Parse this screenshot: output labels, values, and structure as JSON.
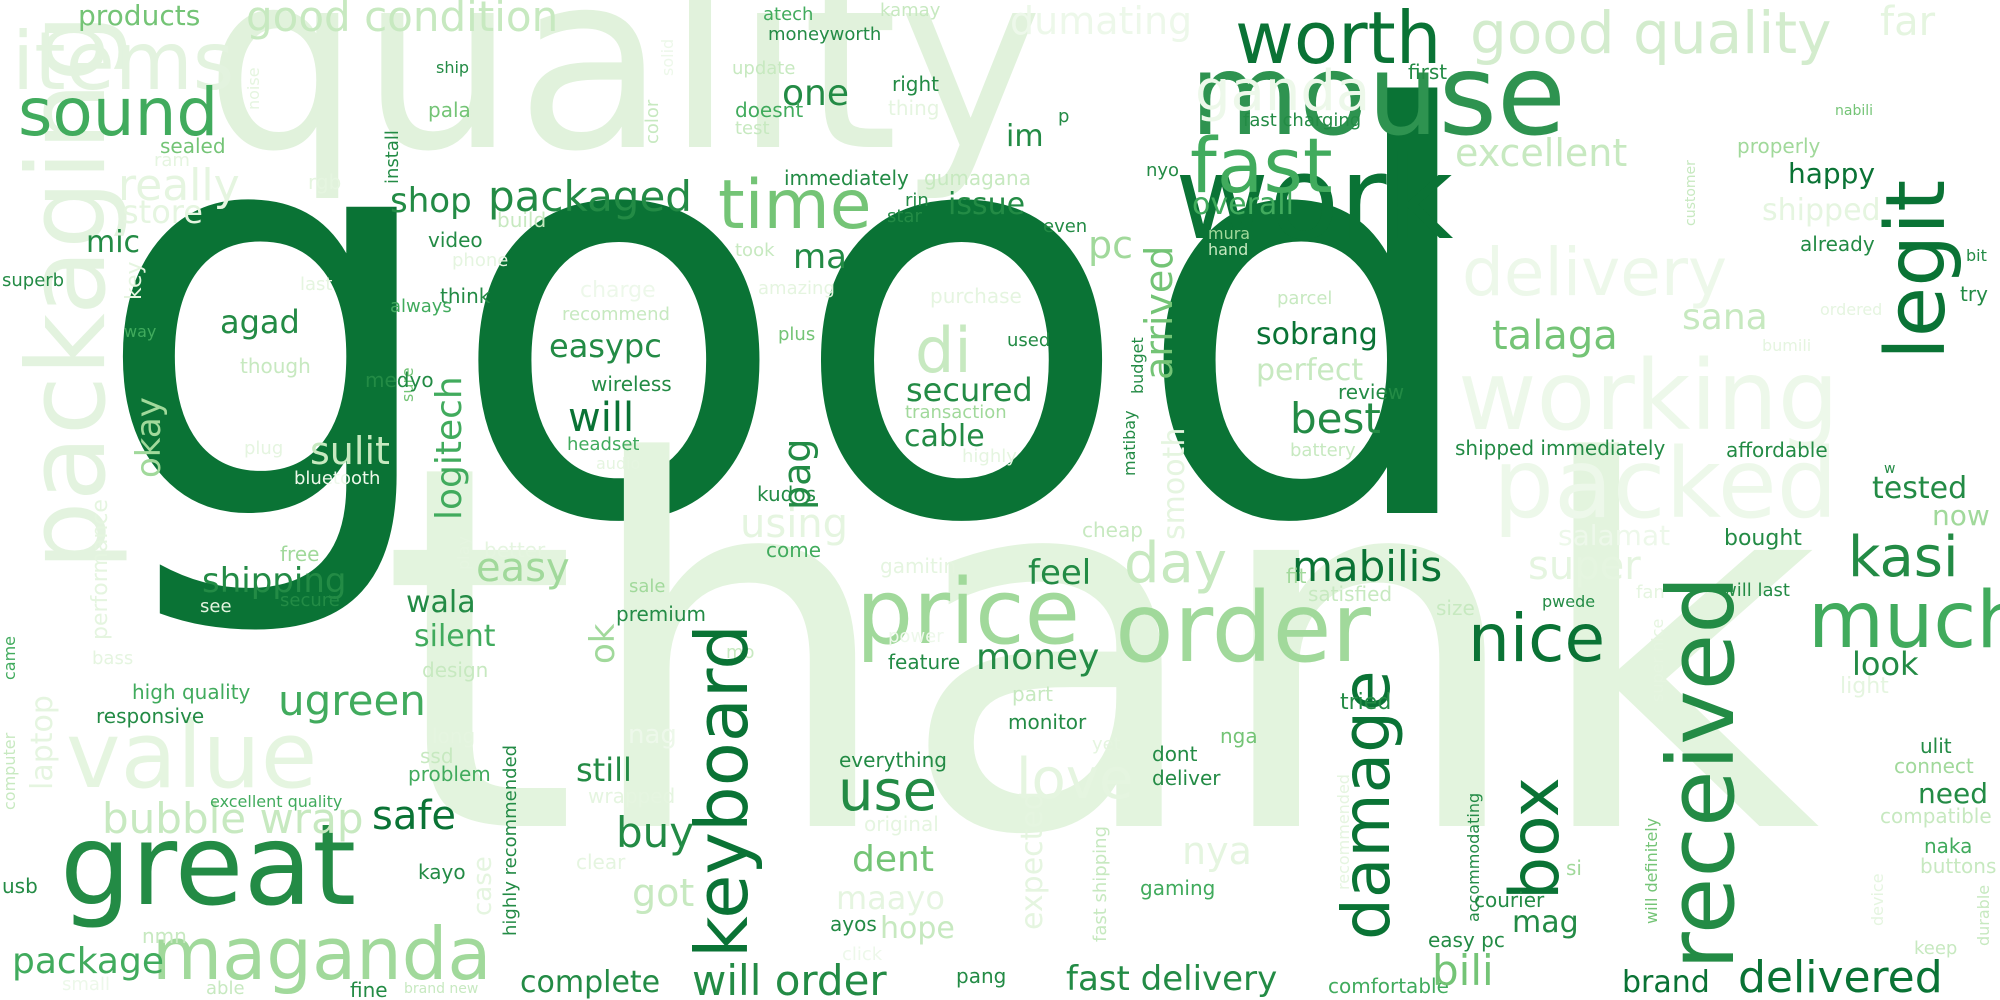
{
  "palette": {
    "darkest": "#00441b",
    "dark": "#0a7335",
    "medium_dark": "#238b45",
    "medium": "#41ab5d",
    "light_medium": "#74c476",
    "light": "#a1d99b",
    "lighter": "#c7e9c0",
    "lightest": "#e5f5e0",
    "background": "#ffffff"
  },
  "words": [
    "good",
    "thank",
    "quality",
    "mouse",
    "work",
    "worth",
    "good quality",
    "legit",
    "packaging",
    "items",
    "sound",
    "products",
    "good condition",
    "dumating",
    "far",
    "atech",
    "moneyworth",
    "kamay",
    "ship",
    "update",
    "right",
    "one",
    "thing",
    "doesnt",
    "test",
    "first",
    "nabili",
    "properly",
    "happy",
    "excellent",
    "shipped",
    "fast",
    "fast charging",
    "ganda",
    "delivery",
    "working",
    "packed",
    "time",
    "shop",
    "packaged",
    "really",
    "store",
    "mic",
    "video",
    "build",
    "took",
    "star",
    "even",
    "issue",
    "im",
    "immediately",
    "gumagana",
    "rin",
    "nyo",
    "overall",
    "mura",
    "hand",
    "pc",
    "ma",
    "already",
    "bit",
    "try",
    "customer",
    "superb",
    "think",
    "always",
    "last",
    "phone",
    "key",
    "way",
    "agad",
    "charge",
    "recommend",
    "amazing",
    "purchase",
    "plus",
    "used",
    "ordered",
    "bumili",
    "talaga",
    "sana",
    "sobrang",
    "parcel",
    "perfect",
    "review",
    "di",
    "easypc",
    "wireless",
    "will",
    "headset",
    "audio",
    "secured",
    "transaction",
    "cable",
    "highly",
    "logitech",
    "arrived",
    "sure",
    "though",
    "plug",
    "medyo",
    "bluetooth",
    "sulit",
    "okay",
    "budget",
    "matibay",
    "smooth",
    "best",
    "battery",
    "shipped immediately",
    "affordable",
    "tested",
    "now",
    "w",
    "pag",
    "kudos",
    "using",
    "cheap",
    "bought",
    "kasi",
    "price",
    "order",
    "day",
    "mabilis",
    "nice",
    "much",
    "super",
    "salamat",
    "easy",
    "feel",
    "fit",
    "satisfied",
    "size",
    "pwede",
    "fan",
    "will last",
    "look",
    "shipping",
    "secure",
    "see",
    "free",
    "better",
    "play",
    "come",
    "sale",
    "premium",
    "gamitin",
    "power",
    "mo",
    "feature",
    "money",
    "wala",
    "silent",
    "noise",
    "ok",
    "design",
    "bass",
    "performance",
    "came",
    "value",
    "high quality",
    "responsive",
    "ugreen",
    "laptop",
    "great",
    "bubble wrap",
    "long",
    "ssd",
    "problem",
    "excellent quality",
    "computer",
    "case",
    "nag",
    "highly recommended",
    "keyboard",
    "safe",
    "still",
    "buy",
    "wrapped",
    "maganda",
    "package",
    "usb",
    "nmn",
    "small",
    "able",
    "fine",
    "brand new",
    "kayo",
    "got",
    "clear",
    "complete",
    "will order",
    "pang",
    "use",
    "dent",
    "maayo",
    "hope",
    "ayos",
    "click",
    "love",
    "expected",
    "fast shipping",
    "fast delivery",
    "everything",
    "original",
    "monitor",
    "yet",
    "part",
    "dont",
    "deliver",
    "nga",
    "nya",
    "gaming",
    "damage",
    "tried",
    "recommended",
    "comfortable",
    "received",
    "box",
    "accommodating",
    "courier",
    "easy pc",
    "mag",
    "bili",
    "si",
    "brand",
    "delivered",
    "will definitely",
    "super nice",
    "light",
    "ulit",
    "connect",
    "need",
    "compatible",
    "naka",
    "buttons",
    "durable",
    "device",
    "keep",
    "rgb",
    "ram",
    "sealed",
    "pala",
    "install",
    "color",
    "solid",
    "p"
  ]
}
